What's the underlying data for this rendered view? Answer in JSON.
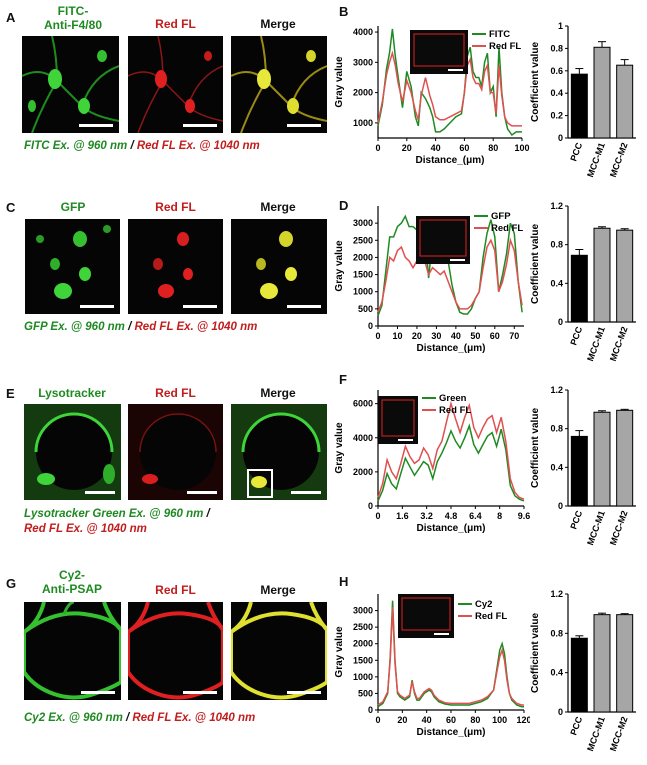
{
  "rows": [
    {
      "letter": "A",
      "plot_letter": "B",
      "titles": [
        {
          "text": "FITC-\nAnti-F4/80",
          "color": "green"
        },
        {
          "text": "Red FL",
          "color": "red"
        },
        {
          "text": "Merge",
          "color": "black"
        }
      ],
      "caption": {
        "part1": "FITC Ex. @ 960 nm",
        "sep": " / ",
        "part2": "Red FL Ex. @ 1040 nm"
      }
    },
    {
      "letter": "C",
      "plot_letter": "D",
      "titles": [
        {
          "text": "GFP",
          "color": "green"
        },
        {
          "text": "Red FL",
          "color": "red"
        },
        {
          "text": "Merge",
          "color": "black"
        }
      ],
      "caption": {
        "part1": "GFP Ex. @ 960 nm",
        "sep": " / ",
        "part2": "Red FL Ex. @ 1040 nm"
      }
    },
    {
      "letter": "E",
      "plot_letter": "F",
      "titles": [
        {
          "text": "Lysotracker",
          "color": "green"
        },
        {
          "text": "Red FL",
          "color": "red"
        },
        {
          "text": "Merge",
          "color": "black"
        }
      ],
      "caption": {
        "part1": "Lysotracker Green Ex. @ 960 nm",
        "sep": " /",
        "part2": "Red FL Ex. @ 1040 nm"
      }
    },
    {
      "letter": "G",
      "plot_letter": "H",
      "titles": [
        {
          "text": "Cy2-\nAnti-PSAP",
          "color": "green"
        },
        {
          "text": "Red FL",
          "color": "red"
        },
        {
          "text": "Merge",
          "color": "black"
        }
      ],
      "caption": {
        "part1": "Cy2 Ex. @ 960 nm",
        "sep": " / ",
        "part2": "Red FL Ex. @ 1040 nm"
      }
    }
  ],
  "colors": {
    "green": "#1f8a22",
    "red": "#e05050",
    "black_bar": "#000000",
    "gray_bar": "#a6a6a6"
  },
  "chart_data": [
    {
      "type": "line",
      "panel": "B",
      "xlabel": "Distance_(μm)",
      "ylabel": "Gray value",
      "xlim": [
        0,
        100
      ],
      "ylim": [
        500,
        4200
      ],
      "xticks": [
        0,
        20,
        40,
        60,
        80,
        100
      ],
      "yticks": [
        1000,
        2000,
        3000,
        4000
      ],
      "series": [
        {
          "name": "FITC",
          "color": "green",
          "x": [
            0,
            3,
            6,
            8,
            10,
            12,
            14,
            17,
            20,
            23,
            26,
            28,
            30,
            33,
            36,
            38,
            40,
            43,
            46,
            50,
            54,
            58,
            60,
            62,
            64,
            66,
            68,
            70,
            72,
            74,
            76,
            78,
            80,
            82,
            84,
            86,
            88,
            90,
            93,
            96,
            100
          ],
          "y": [
            900,
            1600,
            2800,
            3300,
            4100,
            3200,
            2500,
            1500,
            2700,
            2200,
            1200,
            900,
            2000,
            1800,
            1500,
            1200,
            700,
            700,
            800,
            1000,
            1200,
            1300,
            2000,
            3200,
            3500,
            2700,
            2500,
            2500,
            2200,
            3000,
            3300,
            2000,
            2200,
            1200,
            3500,
            2000,
            1200,
            800,
            600,
            700,
            700
          ]
        },
        {
          "name": "Red FL",
          "color": "red",
          "x": [
            0,
            3,
            6,
            8,
            10,
            12,
            14,
            17,
            20,
            23,
            26,
            28,
            30,
            33,
            36,
            38,
            40,
            43,
            46,
            50,
            54,
            58,
            60,
            62,
            64,
            66,
            68,
            70,
            72,
            74,
            76,
            78,
            80,
            82,
            84,
            86,
            88,
            90,
            93,
            96,
            100
          ],
          "y": [
            1000,
            1700,
            2600,
            3000,
            3300,
            2900,
            2300,
            1700,
            2400,
            2000,
            1400,
            1100,
            1900,
            2500,
            1900,
            1600,
            1200,
            1100,
            1100,
            1200,
            1300,
            1400,
            2000,
            2900,
            3100,
            2500,
            2300,
            2300,
            2100,
            2700,
            2900,
            2000,
            2000,
            1300,
            2900,
            1900,
            1200,
            1000,
            900,
            900,
            900
          ]
        }
      ]
    },
    {
      "type": "bar",
      "panel": "B-coef",
      "ylabel": "Coefficient value",
      "ylim": [
        0,
        1.0
      ],
      "yticks": [
        0,
        0.2,
        0.4,
        0.6,
        0.8,
        1.0
      ],
      "categories": [
        "PCC",
        "MCC-M1",
        "MCC-M2"
      ],
      "values": [
        0.57,
        0.81,
        0.65
      ],
      "errors": [
        0.05,
        0.05,
        0.05
      ]
    },
    {
      "type": "line",
      "panel": "D",
      "xlabel": "Distance_(μm)",
      "ylabel": "Gray value",
      "xlim": [
        0,
        75
      ],
      "ylim": [
        0,
        3500
      ],
      "xticks": [
        0,
        10,
        20,
        30,
        40,
        50,
        60,
        70
      ],
      "yticks": [
        0,
        500,
        1000,
        1500,
        2000,
        2500,
        3000
      ],
      "series": [
        {
          "name": "GFP",
          "color": "green",
          "x": [
            0,
            2,
            4,
            6,
            8,
            10,
            12,
            14,
            16,
            18,
            20,
            22,
            24,
            26,
            28,
            30,
            32,
            34,
            36,
            38,
            40,
            42,
            44,
            46,
            48,
            50,
            52,
            54,
            56,
            58,
            60,
            62,
            64,
            66,
            68,
            70,
            72,
            74
          ],
          "y": [
            300,
            600,
            1600,
            2600,
            2600,
            2900,
            3000,
            3200,
            2900,
            2900,
            2800,
            3100,
            2800,
            1400,
            2500,
            2200,
            2500,
            2400,
            1900,
            1200,
            700,
            400,
            350,
            350,
            500,
            800,
            1000,
            2000,
            2700,
            3100,
            2600,
            1000,
            1500,
            2100,
            3000,
            2700,
            1300,
            400
          ]
        },
        {
          "name": "Red FL",
          "color": "red",
          "x": [
            0,
            2,
            4,
            6,
            8,
            10,
            12,
            14,
            16,
            18,
            20,
            22,
            24,
            26,
            28,
            30,
            32,
            34,
            36,
            38,
            40,
            42,
            44,
            46,
            48,
            50,
            52,
            54,
            56,
            58,
            60,
            62,
            64,
            66,
            68,
            70,
            72,
            74
          ],
          "y": [
            400,
            700,
            1300,
            2000,
            1900,
            2200,
            2300,
            2000,
            1900,
            1700,
            1900,
            2000,
            1900,
            1500,
            1700,
            1600,
            1500,
            1600,
            1300,
            1000,
            700,
            500,
            500,
            500,
            600,
            800,
            1000,
            1700,
            2300,
            2500,
            2200,
            1000,
            1300,
            1800,
            2500,
            2200,
            1300,
            600
          ]
        }
      ]
    },
    {
      "type": "bar",
      "panel": "D-coef",
      "ylabel": "Coefficient value",
      "ylim": [
        0,
        1.2
      ],
      "yticks": [
        0,
        0.4,
        0.8,
        1.2
      ],
      "categories": [
        "PCC",
        "MCC-M1",
        "MCC-M2"
      ],
      "values": [
        0.69,
        0.97,
        0.95
      ],
      "errors": [
        0.06,
        0.015,
        0.015
      ]
    },
    {
      "type": "line",
      "panel": "F",
      "xlabel": "Distance_(μm)",
      "ylabel": "Gray value",
      "xlim": [
        0,
        9.6
      ],
      "ylim": [
        0,
        6800
      ],
      "xticks": [
        0,
        1.6,
        3.2,
        4.8,
        6.4,
        8.0,
        9.6
      ],
      "yticks": [
        0,
        2000,
        4000,
        6000
      ],
      "series": [
        {
          "name": "Green",
          "color": "green",
          "x": [
            0,
            0.3,
            0.6,
            0.9,
            1.2,
            1.5,
            1.8,
            2.1,
            2.4,
            2.7,
            3.0,
            3.3,
            3.6,
            3.9,
            4.2,
            4.5,
            4.8,
            5.1,
            5.4,
            5.7,
            6.0,
            6.3,
            6.6,
            6.9,
            7.2,
            7.5,
            7.8,
            8.1,
            8.4,
            8.7,
            9.0,
            9.3,
            9.6
          ],
          "y": [
            300,
            900,
            1900,
            1300,
            1000,
            1900,
            2800,
            2300,
            1800,
            2200,
            2600,
            2400,
            1600,
            2600,
            3100,
            3700,
            4400,
            3800,
            3400,
            4000,
            4700,
            3600,
            3100,
            3600,
            4100,
            4300,
            3500,
            4500,
            3300,
            1200,
            600,
            400,
            300
          ]
        },
        {
          "name": "Red FL",
          "color": "red",
          "x": [
            0,
            0.3,
            0.6,
            0.9,
            1.2,
            1.5,
            1.8,
            2.1,
            2.4,
            2.7,
            3.0,
            3.3,
            3.6,
            3.9,
            4.2,
            4.5,
            4.8,
            5.1,
            5.4,
            5.7,
            6.0,
            6.3,
            6.6,
            6.9,
            7.2,
            7.5,
            7.8,
            8.1,
            8.4,
            8.7,
            9.0,
            9.3,
            9.6
          ],
          "y": [
            500,
            1300,
            2700,
            2000,
            1600,
            2500,
            3500,
            2900,
            2500,
            2700,
            3400,
            3000,
            2200,
            3300,
            3800,
            4900,
            6000,
            5100,
            4300,
            5200,
            5900,
            4600,
            4000,
            4600,
            5100,
            5300,
            4300,
            5200,
            3800,
            1600,
            800,
            500,
            400
          ]
        }
      ]
    },
    {
      "type": "bar",
      "panel": "F-coef",
      "ylabel": "Coefficient value",
      "ylim": [
        0,
        1.2
      ],
      "yticks": [
        0,
        0.4,
        0.8,
        1.2
      ],
      "categories": [
        "PCC",
        "MCC-M1",
        "MCC-M2"
      ],
      "values": [
        0.72,
        0.97,
        0.99
      ],
      "errors": [
        0.06,
        0.015,
        0.01
      ]
    },
    {
      "type": "line",
      "panel": "H",
      "xlabel": "Distance_(μm)",
      "ylabel": "Gray value",
      "xlim": [
        0,
        120
      ],
      "ylim": [
        0,
        3500
      ],
      "xticks": [
        0,
        20,
        40,
        60,
        80,
        100,
        120
      ],
      "yticks": [
        0,
        500,
        1000,
        1500,
        2000,
        2500,
        3000
      ],
      "series": [
        {
          "name": "Cy2",
          "color": "green",
          "x": [
            0,
            4,
            8,
            10,
            12,
            14,
            16,
            18,
            22,
            26,
            28,
            30,
            32,
            34,
            38,
            42,
            44,
            46,
            50,
            55,
            60,
            65,
            70,
            75,
            80,
            85,
            90,
            95,
            98,
            100,
            102,
            104,
            106,
            108,
            110,
            114,
            118,
            120
          ],
          "y": [
            100,
            200,
            500,
            1600,
            3300,
            1500,
            500,
            400,
            300,
            400,
            900,
            500,
            300,
            300,
            500,
            600,
            550,
            400,
            250,
            180,
            150,
            150,
            150,
            150,
            200,
            250,
            350,
            600,
            1300,
            1800,
            2000,
            1700,
            1000,
            500,
            300,
            150,
            100,
            100
          ]
        },
        {
          "name": "Red FL",
          "color": "red",
          "x": [
            0,
            4,
            8,
            10,
            12,
            14,
            16,
            18,
            22,
            26,
            28,
            30,
            32,
            34,
            38,
            42,
            44,
            46,
            50,
            55,
            60,
            65,
            70,
            75,
            80,
            85,
            90,
            95,
            98,
            100,
            102,
            104,
            106,
            108,
            110,
            114,
            118,
            120
          ],
          "y": [
            150,
            250,
            550,
            1500,
            3100,
            1400,
            550,
            450,
            350,
            450,
            850,
            550,
            350,
            350,
            550,
            650,
            600,
            450,
            300,
            220,
            200,
            200,
            200,
            200,
            250,
            300,
            400,
            600,
            1200,
            1600,
            1800,
            1500,
            900,
            500,
            350,
            200,
            150,
            150
          ]
        }
      ]
    },
    {
      "type": "bar",
      "panel": "H-coef",
      "ylabel": "Coefficient value",
      "ylim": [
        0,
        1.2
      ],
      "yticks": [
        0,
        0.4,
        0.8,
        1.2
      ],
      "categories": [
        "PCC",
        "MCC-M1",
        "MCC-M2"
      ],
      "values": [
        0.75,
        0.99,
        0.99
      ],
      "errors": [
        0.025,
        0.015,
        0.01
      ]
    }
  ]
}
